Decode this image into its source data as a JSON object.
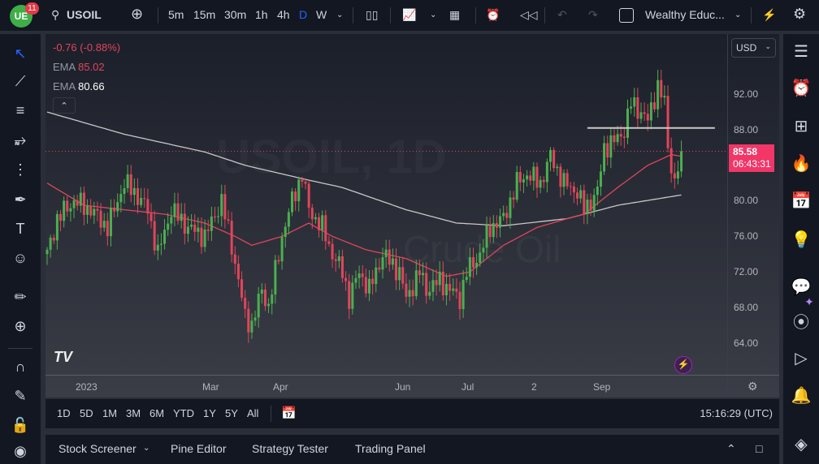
{
  "topbar": {
    "badge": "11",
    "symbol": "USOIL",
    "intervals": [
      "5m",
      "15m",
      "30m",
      "1h",
      "4h",
      "D",
      "W"
    ],
    "active_interval": "D",
    "layout_name": "Wealthy Educ..."
  },
  "legend": {
    "change": "-0.76 (-0.88%)",
    "ema1_label": "EMA",
    "ema1_value": "85.02",
    "ema2_label": "EMA",
    "ema2_value": "80.66"
  },
  "watermark": {
    "line1": "USOIL, 1D",
    "line2": "Crude Oil"
  },
  "price_axis": {
    "currency": "USD",
    "ticks": [
      "92.00",
      "88.00",
      "80.00",
      "76.00",
      "72.00",
      "68.00",
      "64.00"
    ],
    "current_price": "85.58",
    "countdown": "06:43:31"
  },
  "time_axis": {
    "labels": [
      "2023",
      "Mar",
      "Apr",
      "Jun",
      "Jul",
      "2",
      "Sep"
    ]
  },
  "range_buttons": [
    "1D",
    "5D",
    "1M",
    "3M",
    "6M",
    "YTD",
    "1Y",
    "5Y",
    "All"
  ],
  "clock": "15:16:29 (UTC)",
  "bottom_tabs": [
    "Stock Screener",
    "Pine Editor",
    "Strategy Tester",
    "Trading Panel"
  ],
  "colors": {
    "up": "#4caf50",
    "down": "#e0455b",
    "ema_fast": "#e0455b",
    "ema_slow": "#c8c8c8",
    "price_tag": "#f23668",
    "accent": "#2962ff"
  },
  "chart_data": {
    "type": "candlestick",
    "bars": 190,
    "ylim": [
      60.4,
      98.8
    ],
    "tick_values": [
      92,
      88,
      80,
      76,
      72,
      68,
      64
    ],
    "close_knots": [
      [
        0,
        74
      ],
      [
        3,
        78
      ],
      [
        8,
        80
      ],
      [
        13,
        79
      ],
      [
        18,
        77
      ],
      [
        23,
        82
      ],
      [
        26,
        81
      ],
      [
        30,
        79
      ],
      [
        33,
        74
      ],
      [
        37,
        79
      ],
      [
        42,
        77
      ],
      [
        47,
        76
      ],
      [
        52,
        80
      ],
      [
        55,
        75
      ],
      [
        59,
        67
      ],
      [
        61,
        66
      ],
      [
        64,
        70
      ],
      [
        66,
        68
      ],
      [
        70,
        76
      ],
      [
        73,
        80
      ],
      [
        76,
        83
      ],
      [
        78,
        79
      ],
      [
        82,
        77
      ],
      [
        85,
        74
      ],
      [
        88,
        72
      ],
      [
        90,
        69
      ],
      [
        93,
        72
      ],
      [
        96,
        70
      ],
      [
        100,
        74
      ],
      [
        105,
        72
      ],
      [
        107,
        69
      ],
      [
        111,
        72
      ],
      [
        113,
        70
      ],
      [
        117,
        71
      ],
      [
        120,
        70
      ],
      [
        123,
        69
      ],
      [
        125,
        72
      ],
      [
        129,
        74
      ],
      [
        132,
        77
      ],
      [
        136,
        78
      ],
      [
        140,
        82
      ],
      [
        143,
        83
      ],
      [
        147,
        82
      ],
      [
        150,
        85
      ],
      [
        154,
        82
      ],
      [
        158,
        81
      ],
      [
        160,
        79
      ],
      [
        164,
        81
      ],
      [
        166,
        86
      ],
      [
        170,
        87
      ],
      [
        172,
        88
      ],
      [
        174,
        91
      ],
      [
        177,
        90
      ],
      [
        179,
        89
      ],
      [
        182,
        93
      ],
      [
        184,
        91
      ],
      [
        185,
        86
      ],
      [
        187,
        82
      ],
      [
        189,
        85.58
      ]
    ],
    "ema_fast_knots": [
      [
        0,
        82
      ],
      [
        11,
        79.5
      ],
      [
        23,
        79
      ],
      [
        35,
        78.5
      ],
      [
        47,
        77.5
      ],
      [
        56,
        76
      ],
      [
        61,
        75
      ],
      [
        70,
        76
      ],
      [
        78,
        77.5
      ],
      [
        85,
        76
      ],
      [
        95,
        74.5
      ],
      [
        107,
        73.5
      ],
      [
        119,
        71.5
      ],
      [
        126,
        72
      ],
      [
        136,
        75
      ],
      [
        146,
        77
      ],
      [
        155,
        78
      ],
      [
        160,
        78.5
      ],
      [
        170,
        81.5
      ],
      [
        179,
        84
      ],
      [
        186,
        85.2
      ],
      [
        189,
        85.02
      ]
    ],
    "ema_slow_knots": [
      [
        0,
        90
      ],
      [
        23,
        87.5
      ],
      [
        47,
        85.5
      ],
      [
        59,
        84
      ],
      [
        76,
        82.5
      ],
      [
        88,
        81.5
      ],
      [
        107,
        79
      ],
      [
        122,
        77.5
      ],
      [
        136,
        77.2
      ],
      [
        155,
        78
      ],
      [
        170,
        79.5
      ],
      [
        189,
        80.66
      ]
    ],
    "horizontal_level": {
      "price": 88.2,
      "from_bar": 161,
      "to_bar": 199
    }
  }
}
